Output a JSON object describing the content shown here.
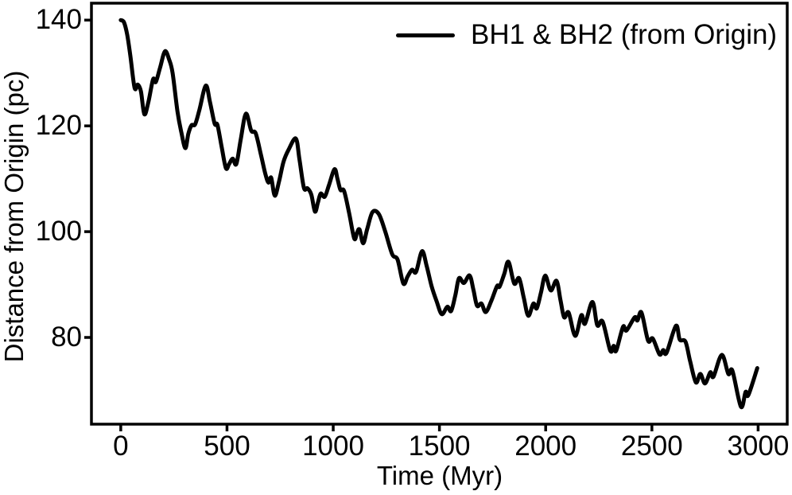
{
  "figure": {
    "background": "#ffffff",
    "axis_color": "#000000",
    "text_color": "#000000"
  },
  "chart_data": {
    "type": "line",
    "title": "",
    "xlabel": "Time (Myr)",
    "ylabel": "Distance from Origin (pc)",
    "xlim": [
      -138,
      3137
    ],
    "ylim": [
      63.6,
      143.2
    ],
    "xticks": [
      0,
      500,
      1000,
      1500,
      2000,
      2500,
      3000
    ],
    "yticks": [
      80,
      100,
      120,
      140
    ],
    "grid": false,
    "legend": {
      "label": "BH1 & BH2 (from Origin)",
      "position": "upper right",
      "frame": false
    },
    "series": [
      {
        "name": "BH1 & BH2 (from Origin)",
        "color": "#000000",
        "line_width": 5,
        "x": [
          0,
          15,
          30,
          45,
          65,
          80,
          95,
          111,
          130,
          152,
          165,
          185,
          208,
          228,
          244,
          267,
          285,
          304,
          318,
          333,
          350,
          370,
          400,
          420,
          442,
          455,
          475,
          495,
          510,
          527,
          544,
          565,
          589,
          614,
          635,
          660,
          680,
          695,
          708,
          725,
          745,
          766,
          790,
          824,
          841,
          862,
          879,
          897,
          914,
          928,
          941,
          960,
          980,
          1006,
          1020,
          1034,
          1051,
          1075,
          1099,
          1112,
          1124,
          1141,
          1160,
          1185,
          1215,
          1245,
          1278,
          1303,
          1330,
          1350,
          1371,
          1390,
          1418,
          1440,
          1463,
          1487,
          1511,
          1537,
          1555,
          1575,
          1592,
          1615,
          1642,
          1660,
          1677,
          1698,
          1718,
          1745,
          1771,
          1783,
          1805,
          1825,
          1852,
          1875,
          1897,
          1918,
          1942,
          1958,
          1978,
          1998,
          2024,
          2051,
          2070,
          2087,
          2108,
          2139,
          2168,
          2185,
          2220,
          2243,
          2268,
          2304,
          2320,
          2332,
          2364,
          2380,
          2419,
          2432,
          2451,
          2482,
          2504,
          2536,
          2553,
          2569,
          2613,
          2631,
          2658,
          2680,
          2707,
          2728,
          2750,
          2775,
          2790,
          2829,
          2860,
          2879,
          2919,
          2941,
          2954,
          2996
        ],
        "y": [
          140.0,
          139.6,
          137.3,
          133.3,
          127.2,
          127.8,
          126.5,
          122.2,
          124.5,
          128.8,
          128.3,
          131.0,
          134.1,
          132.5,
          130.0,
          122.7,
          118.8,
          115.8,
          118.5,
          120.1,
          120.3,
          123.0,
          127.6,
          124.5,
          120.4,
          120.2,
          116.0,
          112.0,
          112.8,
          113.8,
          112.8,
          117.5,
          122.3,
          119.1,
          118.6,
          114.5,
          111.0,
          109.3,
          110.2,
          106.8,
          109.5,
          113.2,
          115.5,
          117.6,
          113.7,
          108.3,
          108.2,
          107.0,
          103.8,
          105.5,
          107.2,
          106.6,
          108.8,
          111.8,
          110.0,
          107.9,
          107.7,
          103.5,
          98.7,
          99.8,
          100.4,
          97.8,
          100.5,
          103.7,
          103.3,
          100.0,
          95.7,
          94.7,
          90.2,
          91.5,
          92.8,
          92.4,
          96.3,
          93.5,
          89.7,
          86.8,
          84.4,
          85.8,
          85.0,
          88.0,
          91.2,
          90.3,
          91.7,
          89.0,
          86.0,
          86.4,
          84.8,
          87.0,
          89.7,
          89.6,
          92.0,
          94.3,
          90.2,
          91.2,
          87.5,
          84.1,
          86.4,
          85.5,
          88.5,
          91.7,
          88.9,
          90.7,
          87.0,
          83.8,
          84.7,
          80.3,
          84.2,
          82.6,
          86.7,
          82.3,
          83.0,
          77.5,
          78.4,
          77.5,
          82.0,
          81.3,
          83.8,
          83.2,
          84.7,
          79.4,
          79.8,
          76.8,
          77.6,
          77.1,
          82.2,
          79.6,
          79.2,
          75.5,
          71.5,
          73.1,
          71.3,
          73.4,
          72.6,
          76.7,
          73.1,
          73.7,
          66.9,
          69.7,
          69.1,
          74.2
        ]
      }
    ]
  }
}
